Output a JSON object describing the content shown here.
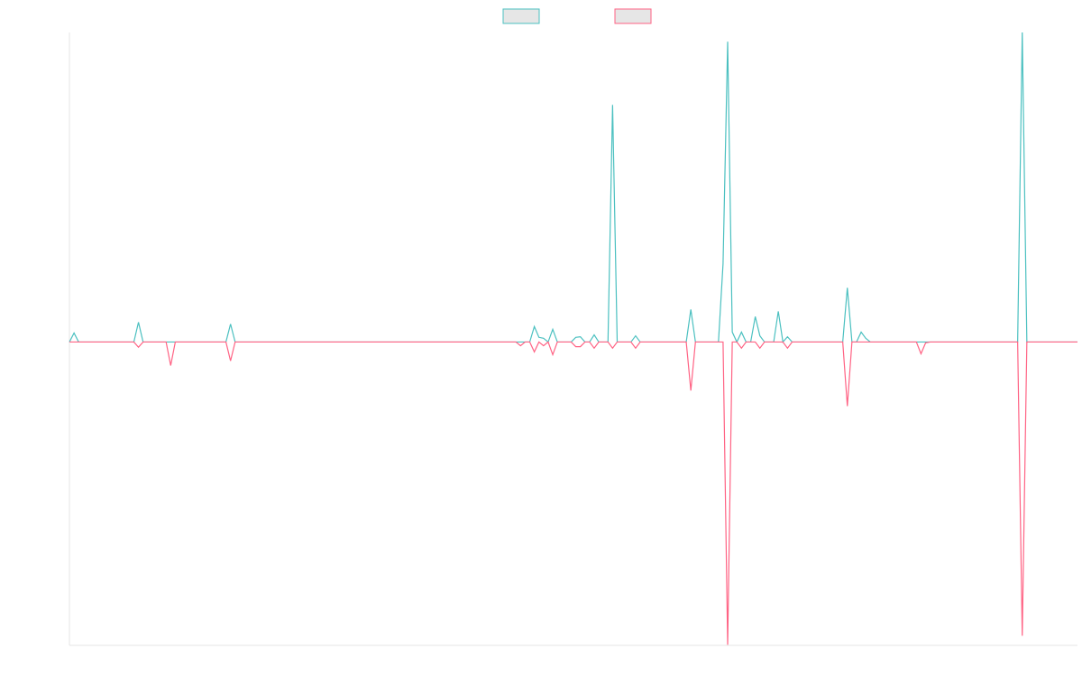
{
  "chart_data": {
    "type": "line",
    "legend": "top",
    "grid": false,
    "ylim": [
      -98,
      100
    ],
    "categories": [
      null,
      null,
      null,
      null,
      null,
      null,
      null,
      null,
      null,
      null,
      null,
      null,
      null,
      null,
      null,
      null,
      null,
      null,
      null,
      null,
      null,
      null,
      null,
      null,
      null,
      null,
      null,
      null,
      null,
      null,
      null,
      null,
      null,
      null,
      null,
      null,
      null,
      null,
      null,
      null,
      null,
      null,
      null,
      null,
      null,
      null,
      null,
      null,
      null,
      null,
      null,
      null,
      null,
      null,
      null,
      null,
      null,
      null,
      null,
      null,
      null,
      null,
      null,
      null,
      null,
      null,
      null,
      null,
      null,
      null,
      null,
      null,
      null,
      null,
      null,
      null,
      null,
      null,
      null,
      null,
      null,
      null,
      null,
      null,
      null,
      null,
      null,
      null,
      null,
      null,
      null,
      null,
      null,
      null,
      null,
      null,
      null,
      null,
      null,
      null,
      null,
      null,
      null,
      null,
      null,
      null,
      null,
      null,
      null,
      null,
      null,
      null,
      null,
      null,
      null,
      null,
      null,
      null,
      null,
      null,
      null,
      null,
      null,
      null,
      null,
      null,
      null,
      null,
      null,
      null,
      null,
      null,
      null,
      null,
      null,
      null,
      null,
      null,
      null,
      null,
      null,
      null,
      null,
      null,
      null,
      null,
      null,
      null,
      null,
      null,
      null,
      null,
      null,
      null,
      null,
      null,
      null,
      null,
      null,
      null,
      null,
      null,
      null,
      null,
      null,
      null,
      null,
      null,
      null,
      null,
      null,
      null,
      null,
      null,
      null,
      null,
      null,
      null,
      null,
      null,
      null,
      null,
      null,
      null,
      null,
      null,
      null,
      null,
      null,
      null,
      null,
      null,
      null,
      null,
      null,
      null,
      null,
      null,
      null,
      null,
      null,
      null,
      null,
      null,
      null,
      null,
      null,
      null,
      null,
      null,
      null,
      null,
      null,
      null,
      null,
      null,
      null,
      null,
      null,
      null
    ],
    "series": [
      {
        "color": "#4bc0c0",
        "values": [
          0,
          2.9,
          0,
          0,
          0,
          0,
          0,
          0,
          0,
          0,
          0,
          0,
          0,
          0,
          0,
          6.4,
          0,
          0,
          0,
          0,
          0,
          0,
          0,
          0,
          0,
          0,
          0,
          0,
          0,
          0,
          0,
          0,
          0,
          0,
          0,
          5.8,
          0,
          0,
          0,
          0,
          0,
          0,
          0,
          0,
          0,
          0,
          0,
          0,
          0,
          0,
          0,
          0,
          0,
          0,
          0,
          0,
          0,
          0,
          0,
          0,
          0,
          0,
          0,
          0,
          0,
          0,
          0,
          0,
          0,
          0,
          0,
          0,
          0,
          0,
          0,
          0,
          0,
          0,
          0,
          0,
          0,
          0,
          0,
          0,
          0,
          0,
          0,
          0,
          0,
          0,
          0,
          0,
          0,
          0,
          0,
          0,
          0,
          0,
          0,
          0,
          0,
          5,
          1.5,
          1.2,
          0,
          4.1,
          0,
          0,
          0,
          0,
          1.5,
          1.7,
          0,
          0,
          2.3,
          0,
          0,
          0,
          76.6,
          0,
          0,
          0,
          0,
          2,
          0,
          0,
          0,
          0,
          0,
          0,
          0,
          0,
          0,
          0,
          0,
          10.5,
          0,
          0,
          0,
          0,
          0,
          0,
          25.3,
          97,
          3.2,
          0,
          3.2,
          0,
          0,
          8.2,
          2,
          0,
          0,
          0,
          9.9,
          0,
          1.7,
          0,
          0,
          0,
          0,
          0,
          0,
          0,
          0,
          0,
          0,
          0,
          0,
          17.5,
          0,
          0,
          3.2,
          1.2,
          0,
          0,
          0,
          0,
          0,
          0,
          0,
          0,
          0,
          0,
          0,
          0,
          0,
          0,
          0,
          0,
          0,
          0,
          0,
          0,
          0,
          0,
          0,
          0,
          0,
          0,
          0,
          0,
          0,
          0,
          0,
          0,
          0,
          100,
          0,
          0,
          0,
          0,
          0,
          0,
          0,
          0,
          0,
          0,
          0,
          0
        ]
      },
      {
        "color": "#ff6384",
        "values": [
          0,
          0,
          0,
          0,
          0,
          0,
          0,
          0,
          0,
          0,
          0,
          0,
          0,
          0,
          0,
          -1.7,
          0,
          0,
          0,
          0,
          0,
          0,
          -7.6,
          0,
          0,
          0,
          0,
          0,
          0,
          0,
          0,
          0,
          0,
          0,
          0,
          -6.1,
          0,
          0,
          0,
          0,
          0,
          0,
          0,
          0,
          0,
          0,
          0,
          0,
          0,
          0,
          0,
          0,
          0,
          0,
          0,
          0,
          0,
          0,
          0,
          0,
          0,
          0,
          0,
          0,
          0,
          0,
          0,
          0,
          0,
          0,
          0,
          0,
          0,
          0,
          0,
          0,
          0,
          0,
          0,
          0,
          0,
          0,
          0,
          0,
          0,
          0,
          0,
          0,
          0,
          0,
          0,
          0,
          0,
          0,
          0,
          0,
          0,
          0,
          -1.2,
          0,
          0,
          -3.2,
          0,
          -1.2,
          0,
          -4.1,
          0,
          0,
          0,
          0,
          -1.5,
          -1.5,
          0,
          0,
          -2,
          0,
          0,
          0,
          -2,
          0,
          0,
          0,
          0,
          -2,
          0,
          0,
          0,
          0,
          0,
          0,
          0,
          0,
          0,
          0,
          0,
          -15.7,
          0,
          0,
          0,
          0,
          0,
          0,
          0,
          -97.8,
          0,
          0,
          -2,
          0,
          0,
          0,
          -2,
          0,
          0,
          0,
          0,
          0,
          -2,
          0,
          0,
          0,
          0,
          0,
          0,
          0,
          0,
          0,
          0,
          0,
          0,
          -20.7,
          0,
          0,
          0,
          0,
          0,
          0,
          0,
          0,
          0,
          0,
          0,
          0,
          0,
          0,
          0,
          -3.8,
          -0.3,
          0,
          0,
          0,
          0,
          0,
          0,
          0,
          0,
          0,
          0,
          0,
          0,
          0,
          0,
          0,
          0,
          0,
          0,
          0,
          0,
          -94.9,
          0,
          0,
          0,
          0,
          0,
          0,
          0,
          0,
          0,
          0,
          0,
          0
        ]
      }
    ]
  }
}
